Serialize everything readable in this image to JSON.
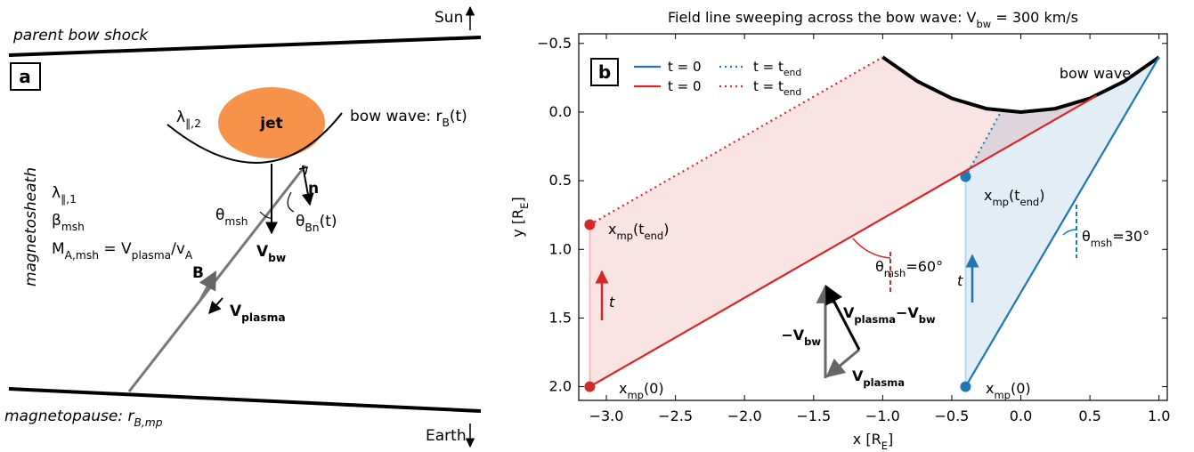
{
  "diagram": {
    "panel_label": "a",
    "texts": {
      "parent_bow_shock": "parent bow shock",
      "sun": "Sun",
      "jet": "jet",
      "bow_wave": "bow wave: r_{B}(t)",
      "lambda2": "λ_{∥,2}",
      "lambda1": "λ_{∥,1}",
      "beta": "β_{msh}",
      "mach": "M_{A,msh} = V_{plasma}/v_{A}",
      "magnetosheath": "magnetosheath",
      "theta_msh": "θ_{msh}",
      "n": "n",
      "theta_bn": "θ_{Bn}(t)",
      "v_bw": "V_{bw}",
      "b": "B",
      "v_plasma": "V_{plasma}",
      "magnetopause": "magnetopause: r_{B,mp}",
      "earth": "Earth"
    }
  },
  "chart_data": {
    "type": "line",
    "panel_label": "b",
    "title": "Field line sweeping across the bow wave: V_{bw} = 300 km/s",
    "x_label": "x [R_{E}]",
    "y_label": "y [R_{E}]",
    "xlim": [
      -3.2,
      1.06
    ],
    "ylim": [
      -0.57,
      2.1
    ],
    "y_inverted": true,
    "xticks": [
      {
        "value": -3,
        "label": "−3.0"
      },
      {
        "value": -2.5,
        "label": "−2.5"
      },
      {
        "value": -2,
        "label": "−2.0"
      },
      {
        "value": -1.5,
        "label": "−1.5"
      },
      {
        "value": -1,
        "label": "−1.0"
      },
      {
        "value": -0.5,
        "label": "−0.5"
      },
      {
        "value": 0,
        "label": "0.0"
      },
      0.5,
      {
        "value": 1,
        "label": "1.0"
      }
    ],
    "yticks": [
      {
        "value": -0.5,
        "label": "−0.5"
      },
      {
        "value": 0,
        "label": "0.0"
      },
      0.5,
      {
        "value": 1,
        "label": "1.0"
      },
      1.5,
      {
        "value": 2,
        "label": "2.0"
      }
    ],
    "series": [
      {
        "name": "t = 0",
        "color": "#1f77b4",
        "linestyle": "solid",
        "x": [
          -0.4,
          1.0
        ],
        "y": [
          2.0,
          -0.4
        ]
      },
      {
        "name": "t = t_{end}",
        "color": "#1f77b4",
        "linestyle": "dotted",
        "x": [
          -0.4,
          -0.14
        ],
        "y": [
          0.47,
          -0.01
        ]
      },
      {
        "name": "t = 0",
        "color": "#d62728",
        "linestyle": "solid",
        "x": [
          -3.12,
          0.55
        ],
        "y": [
          2.0,
          -0.12
        ]
      },
      {
        "name": "t = t_{end}",
        "color": "#d62728",
        "linestyle": "dotted",
        "x": [
          -3.12,
          -1.0
        ],
        "y": [
          0.82,
          -0.4
        ]
      }
    ],
    "bow_wave": {
      "label": "bow wave",
      "color": "#000000",
      "x": [
        -1,
        -0.75,
        -0.5,
        -0.25,
        0,
        0.25,
        0.5,
        0.75,
        1
      ],
      "y": [
        -0.4,
        -0.225,
        -0.1,
        -0.025,
        0,
        -0.025,
        -0.1,
        -0.225,
        -0.4
      ]
    },
    "annotations": [
      {
        "text": "x_{mp}(t_{end})",
        "color": "#d62728"
      },
      {
        "text": "x_{mp}(0)",
        "color": "#d62728"
      },
      {
        "text": "θ_{msh}=60°",
        "color": "#d62728"
      },
      {
        "text": "t",
        "color": "#d62728"
      },
      {
        "text": "x_{mp}(t_{end})",
        "color": "#1f77b4"
      },
      {
        "text": "x_{mp}(0)",
        "color": "#1f77b4"
      },
      {
        "text": "θ_{msh}=30°",
        "color": "#1f77b4"
      },
      {
        "text": "t",
        "color": "#1f77b4"
      },
      {
        "text": "−V_{bw}",
        "color": "#555555"
      },
      {
        "text": "V_{plasma}−V_{bw}",
        "color": "#000000"
      },
      {
        "text": "V_{plasma}",
        "color": "#555555"
      }
    ]
  }
}
